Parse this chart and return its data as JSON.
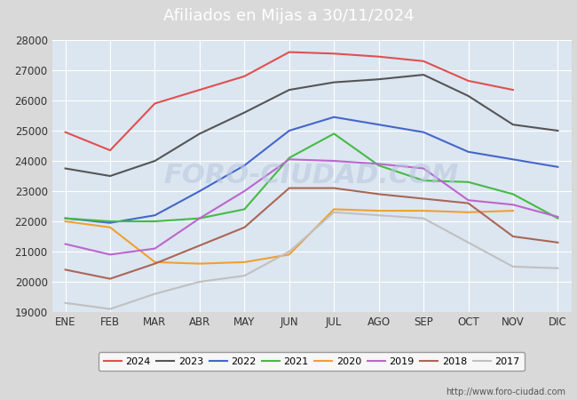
{
  "title": "Afiliados en Mijas a 30/11/2024",
  "title_bg_color": "#4d7ebf",
  "figure_bg_color": "#d9d9d9",
  "plot_bg_color": "#dce6f1",
  "ylim": [
    19000,
    28000
  ],
  "yticks": [
    19000,
    20000,
    21000,
    22000,
    23000,
    24000,
    25000,
    26000,
    27000,
    28000
  ],
  "months": [
    "ENE",
    "FEB",
    "MAR",
    "ABR",
    "MAY",
    "JUN",
    "JUL",
    "AGO",
    "SEP",
    "OCT",
    "NOV",
    "DIC"
  ],
  "watermark": "FORO-CIUDAD.COM",
  "url": "http://www.foro-ciudad.com",
  "series": [
    {
      "label": "2024",
      "color": "#e05050",
      "linewidth": 1.5,
      "data": [
        24950,
        24350,
        25900,
        26350,
        26800,
        27600,
        27550,
        27450,
        27300,
        26650,
        26350,
        null
      ]
    },
    {
      "label": "2023",
      "color": "#555555",
      "linewidth": 1.5,
      "data": [
        23750,
        23500,
        24000,
        24900,
        25600,
        26350,
        26600,
        26700,
        26850,
        26150,
        25200,
        25000
      ]
    },
    {
      "label": "2022",
      "color": "#4466cc",
      "linewidth": 1.5,
      "data": [
        22100,
        21950,
        22200,
        23000,
        23850,
        25000,
        25450,
        25200,
        24950,
        24300,
        24050,
        23800
      ]
    },
    {
      "label": "2021",
      "color": "#44bb44",
      "linewidth": 1.5,
      "data": [
        22100,
        22000,
        22000,
        22100,
        22400,
        24100,
        24900,
        23850,
        23350,
        23300,
        22900,
        22100
      ]
    },
    {
      "label": "2020",
      "color": "#f0a030",
      "linewidth": 1.5,
      "data": [
        22000,
        21800,
        20650,
        20600,
        20650,
        20900,
        22400,
        22350,
        22350,
        22300,
        22350,
        null
      ]
    },
    {
      "label": "2019",
      "color": "#bb66cc",
      "linewidth": 1.5,
      "data": [
        21250,
        20900,
        21100,
        22100,
        23000,
        24050,
        24000,
        23900,
        23750,
        22700,
        22550,
        22150
      ]
    },
    {
      "label": "2018",
      "color": "#aa6655",
      "linewidth": 1.5,
      "data": [
        20400,
        20100,
        20600,
        21200,
        21800,
        23100,
        23100,
        22900,
        22750,
        22600,
        21500,
        21300
      ]
    },
    {
      "label": "2017",
      "color": "#c0c0c0",
      "linewidth": 1.5,
      "data": [
        19300,
        19100,
        19600,
        20000,
        20200,
        21000,
        22300,
        22200,
        22100,
        21300,
        20500,
        20450
      ]
    }
  ]
}
